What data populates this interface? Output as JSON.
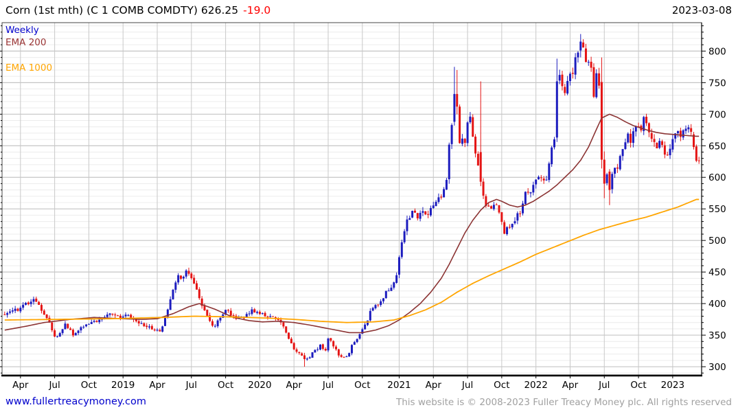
{
  "header": {
    "title": "Corn (1st mth) (C 1 COMB COMDTY) 626.25",
    "change": "-19.0",
    "date": "2023-03-08"
  },
  "footer": {
    "site_link": "www.fullertreacymoney.com",
    "copyright": "This website is © 2008-2023 Fuller Treacy Money plc. All rights reserved"
  },
  "chart_data": {
    "type": "candlestick",
    "timeframe": "Weekly",
    "instrument": "Corn (1st mth)",
    "last_close": 626.25,
    "change": -19.0,
    "legend": [
      {
        "label": "Weekly",
        "color": "#0000cc"
      },
      {
        "label": "EMA 200",
        "color": "#993333"
      },
      {
        "label": "EMA 1000",
        "color": "#ffa500"
      }
    ],
    "y_axis": {
      "side": "right",
      "min": 287,
      "max": 845,
      "tick_labels": [
        300,
        350,
        400,
        450,
        500,
        550,
        600,
        650,
        700,
        750,
        800
      ],
      "major_step": 50,
      "minor_step": 10
    },
    "x_axis": {
      "num_weeks": 266,
      "ticks": [
        {
          "week": 6,
          "label": "Apr"
        },
        {
          "week": 19,
          "label": "Jul"
        },
        {
          "week": 32,
          "label": "Oct"
        },
        {
          "week": 45,
          "label": "2019"
        },
        {
          "week": 58,
          "label": "Apr"
        },
        {
          "week": 71,
          "label": "Jul"
        },
        {
          "week": 84,
          "label": "Oct"
        },
        {
          "week": 97,
          "label": "2020"
        },
        {
          "week": 110,
          "label": "Apr"
        },
        {
          "week": 123,
          "label": "Jul"
        },
        {
          "week": 136,
          "label": "Oct"
        },
        {
          "week": 150,
          "label": "2021"
        },
        {
          "week": 163,
          "label": "Apr"
        },
        {
          "week": 176,
          "label": "Jul"
        },
        {
          "week": 189,
          "label": "Oct"
        },
        {
          "week": 202,
          "label": "2022"
        },
        {
          "week": 215,
          "label": "Apr"
        },
        {
          "week": 228,
          "label": "Jul"
        },
        {
          "week": 241,
          "label": "Oct"
        },
        {
          "week": 254,
          "label": "2023"
        }
      ]
    },
    "close_waypoints": [
      [
        0,
        383
      ],
      [
        3,
        388
      ],
      [
        6,
        392
      ],
      [
        9,
        401
      ],
      [
        11,
        408
      ],
      [
        13,
        398
      ],
      [
        15,
        383
      ],
      [
        17,
        368
      ],
      [
        19,
        346
      ],
      [
        21,
        353
      ],
      [
        23,
        366
      ],
      [
        26,
        352
      ],
      [
        29,
        361
      ],
      [
        32,
        370
      ],
      [
        35,
        372
      ],
      [
        38,
        381
      ],
      [
        41,
        384
      ],
      [
        44,
        378
      ],
      [
        47,
        381
      ],
      [
        50,
        374
      ],
      [
        53,
        366
      ],
      [
        56,
        360
      ],
      [
        59,
        354
      ],
      [
        61,
        376
      ],
      [
        63,
        408
      ],
      [
        65,
        431
      ],
      [
        66,
        448
      ],
      [
        67,
        440
      ],
      [
        69,
        452
      ],
      [
        71,
        437
      ],
      [
        73,
        420
      ],
      [
        75,
        398
      ],
      [
        77,
        380
      ],
      [
        79,
        364
      ],
      [
        81,
        371
      ],
      [
        84,
        391
      ],
      [
        86,
        384
      ],
      [
        88,
        377
      ],
      [
        91,
        380
      ],
      [
        94,
        389
      ],
      [
        97,
        386
      ],
      [
        100,
        381
      ],
      [
        103,
        377
      ],
      [
        106,
        364
      ],
      [
        108,
        346
      ],
      [
        110,
        330
      ],
      [
        112,
        320
      ],
      [
        114,
        312
      ],
      [
        116,
        317
      ],
      [
        118,
        326
      ],
      [
        120,
        333
      ],
      [
        122,
        325
      ],
      [
        123,
        343
      ],
      [
        125,
        334
      ],
      [
        127,
        318
      ],
      [
        129,
        313
      ],
      [
        131,
        323
      ],
      [
        133,
        341
      ],
      [
        135,
        352
      ],
      [
        137,
        366
      ],
      [
        139,
        386
      ],
      [
        141,
        398
      ],
      [
        143,
        403
      ],
      [
        145,
        420
      ],
      [
        147,
        425
      ],
      [
        149,
        446
      ],
      [
        151,
        496
      ],
      [
        153,
        531
      ],
      [
        155,
        548
      ],
      [
        157,
        538
      ],
      [
        159,
        549
      ],
      [
        161,
        542
      ],
      [
        163,
        553
      ],
      [
        165,
        565
      ],
      [
        167,
        579
      ],
      [
        168,
        592
      ],
      [
        169,
        648
      ],
      [
        170,
        686
      ],
      [
        171,
        732
      ],
      [
        172,
        712
      ],
      [
        173,
        658
      ],
      [
        175,
        657
      ],
      [
        176,
        683
      ],
      [
        177,
        693
      ],
      [
        178,
        668
      ],
      [
        179,
        641
      ],
      [
        181,
        593
      ],
      [
        183,
        553
      ],
      [
        185,
        548
      ],
      [
        187,
        559
      ],
      [
        190,
        514
      ],
      [
        192,
        523
      ],
      [
        194,
        534
      ],
      [
        196,
        546
      ],
      [
        198,
        573
      ],
      [
        200,
        578
      ],
      [
        202,
        596
      ],
      [
        204,
        601
      ],
      [
        206,
        597
      ],
      [
        208,
        648
      ],
      [
        209,
        662
      ],
      [
        210,
        752
      ],
      [
        211,
        761
      ],
      [
        212,
        746
      ],
      [
        213,
        739
      ],
      [
        214,
        753
      ],
      [
        216,
        769
      ],
      [
        218,
        801
      ],
      [
        219,
        815
      ],
      [
        220,
        806
      ],
      [
        221,
        789
      ],
      [
        223,
        773
      ],
      [
        224,
        733
      ],
      [
        225,
        759
      ],
      [
        226,
        751
      ],
      [
        227,
        628
      ],
      [
        228,
        590
      ],
      [
        229,
        609
      ],
      [
        230,
        580
      ],
      [
        231,
        601
      ],
      [
        232,
        619
      ],
      [
        233,
        611
      ],
      [
        234,
        631
      ],
      [
        235,
        646
      ],
      [
        236,
        659
      ],
      [
        237,
        665
      ],
      [
        238,
        656
      ],
      [
        239,
        669
      ],
      [
        240,
        679
      ],
      [
        241,
        686
      ],
      [
        242,
        679
      ],
      [
        243,
        693
      ],
      [
        244,
        685
      ],
      [
        245,
        669
      ],
      [
        246,
        661
      ],
      [
        247,
        656
      ],
      [
        248,
        649
      ],
      [
        249,
        656
      ],
      [
        250,
        655
      ],
      [
        251,
        641
      ],
      [
        252,
        633
      ],
      [
        253,
        649
      ],
      [
        254,
        656
      ],
      [
        255,
        671
      ],
      [
        256,
        676
      ],
      [
        257,
        669
      ],
      [
        258,
        679
      ],
      [
        259,
        681
      ],
      [
        260,
        676
      ],
      [
        261,
        669
      ],
      [
        262,
        648
      ],
      [
        263,
        626.25
      ]
    ],
    "ema200_waypoints": [
      [
        0,
        358
      ],
      [
        8,
        364
      ],
      [
        15,
        370
      ],
      [
        25,
        375
      ],
      [
        34,
        378
      ],
      [
        45,
        376
      ],
      [
        52,
        375
      ],
      [
        58,
        376
      ],
      [
        64,
        384
      ],
      [
        70,
        395
      ],
      [
        74,
        400
      ],
      [
        80,
        391
      ],
      [
        87,
        378
      ],
      [
        93,
        373
      ],
      [
        98,
        371
      ],
      [
        104,
        372
      ],
      [
        110,
        370
      ],
      [
        116,
        366
      ],
      [
        121,
        362
      ],
      [
        126,
        358
      ],
      [
        131,
        354
      ],
      [
        136,
        354
      ],
      [
        141,
        358
      ],
      [
        146,
        365
      ],
      [
        150,
        374
      ],
      [
        154,
        386
      ],
      [
        158,
        400
      ],
      [
        162,
        418
      ],
      [
        166,
        440
      ],
      [
        169,
        462
      ],
      [
        172,
        487
      ],
      [
        175,
        512
      ],
      [
        178,
        532
      ],
      [
        181,
        548
      ],
      [
        184,
        560
      ],
      [
        187,
        565
      ],
      [
        189,
        562
      ],
      [
        192,
        556
      ],
      [
        195,
        553
      ],
      [
        198,
        556
      ],
      [
        201,
        562
      ],
      [
        204,
        570
      ],
      [
        207,
        578
      ],
      [
        210,
        588
      ],
      [
        213,
        600
      ],
      [
        216,
        612
      ],
      [
        219,
        627
      ],
      [
        222,
        648
      ],
      [
        225,
        676
      ],
      [
        227,
        694
      ],
      [
        230,
        700
      ],
      [
        233,
        695
      ],
      [
        236,
        688
      ],
      [
        239,
        682
      ],
      [
        242,
        678
      ],
      [
        245,
        674
      ],
      [
        248,
        671
      ],
      [
        251,
        669
      ],
      [
        254,
        668
      ],
      [
        257,
        667
      ],
      [
        260,
        666
      ],
      [
        263,
        665
      ]
    ],
    "ema1000_waypoints": [
      [
        0,
        374
      ],
      [
        20,
        375
      ],
      [
        40,
        376
      ],
      [
        60,
        378
      ],
      [
        72,
        380
      ],
      [
        85,
        379
      ],
      [
        100,
        377
      ],
      [
        110,
        375
      ],
      [
        120,
        372
      ],
      [
        130,
        370
      ],
      [
        140,
        371
      ],
      [
        148,
        374
      ],
      [
        154,
        381
      ],
      [
        160,
        390
      ],
      [
        166,
        402
      ],
      [
        172,
        418
      ],
      [
        178,
        432
      ],
      [
        184,
        444
      ],
      [
        190,
        455
      ],
      [
        196,
        466
      ],
      [
        202,
        478
      ],
      [
        208,
        488
      ],
      [
        214,
        498
      ],
      [
        220,
        508
      ],
      [
        226,
        517
      ],
      [
        232,
        524
      ],
      [
        238,
        531
      ],
      [
        244,
        537
      ],
      [
        250,
        545
      ],
      [
        256,
        553
      ],
      [
        263,
        565
      ]
    ],
    "candle_overrides": {
      "114": [
        318,
        322,
        300,
        312
      ],
      "171": [
        688,
        775,
        682,
        732
      ],
      "172": [
        732,
        770,
        700,
        712
      ],
      "181": [
        640,
        752,
        586,
        593
      ],
      "210": [
        663,
        788,
        656,
        752
      ],
      "219": [
        801,
        827,
        790,
        815
      ],
      "227": [
        751,
        790,
        614,
        628
      ],
      "228": [
        628,
        641,
        567,
        590
      ],
      "230": [
        609,
        613,
        556,
        580
      ],
      "262": [
        668,
        672,
        644,
        648
      ],
      "263": [
        649,
        652,
        624,
        626.25
      ]
    },
    "colors": {
      "up": "#1c1cbe",
      "down": "#e41414",
      "ema200": "#8b3333",
      "ema1000": "#ffa500",
      "grid_major": "#c4c4c4",
      "grid_minor": "#ececec",
      "grid_vertical": "#c8c8c8",
      "axis": "#000000",
      "frame": "#444444"
    }
  }
}
